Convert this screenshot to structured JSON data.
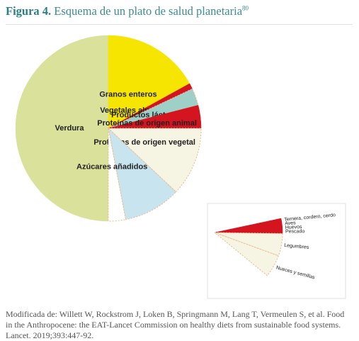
{
  "title": {
    "label": "Figura 4.",
    "text": "Esquema de un plato de salud planetaria",
    "sup": "80"
  },
  "chart_data": [
    {
      "type": "pie",
      "categories": [
        "Verdura",
        "Granos enteros",
        "Vegetales almidonados",
        "Productos lácteos",
        "Proteínas de origen animal",
        "Proteínas de origen vegetal",
        null,
        "Azúcares añadidos"
      ],
      "values": [
        50,
        17,
        1,
        3,
        4,
        12,
        10,
        3
      ],
      "colors": [
        "#d9e19a",
        "#f6e500",
        "#d4141e",
        "#9fd0c8",
        "#d4141e",
        "#f6f4e2",
        "#c7e4ef",
        "#ffffff"
      ]
    },
    {
      "type": "pie",
      "categories": [
        "Ternera, cordero, cerdo",
        "Aves",
        "Huevos",
        "Pescado",
        "Legumbres",
        "Nueces y semillas"
      ],
      "values": [
        1,
        1,
        1,
        1,
        6,
        6
      ],
      "colors": [
        "#d4141e",
        "#d4141e",
        "#d4141e",
        "#d4141e",
        "#f6f4e2",
        "#f6f4e2"
      ]
    }
  ],
  "caption": "Modificada de: Willett W, Rockstrom J, Loken B, Springmann M, Lang T, Vermeulen S, et al. Food in the Anthropocene: the EAT-Lancet Commission on healthy diets from sustainable food systems. Lancet. 2019;393:447-92."
}
